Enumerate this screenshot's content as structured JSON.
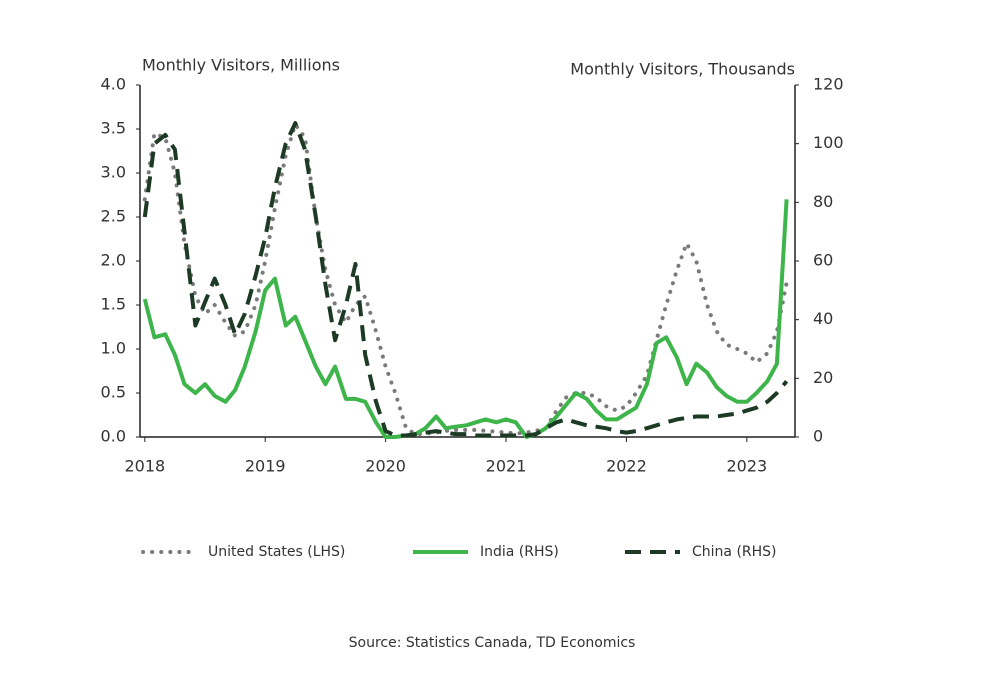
{
  "chart_data": {
    "type": "line",
    "y_label": "Monthly Visitors, Millions",
    "y2_label": "Monthly Visitors, Thousands",
    "source": "Source: Statistics Canada, TD Economics",
    "x": [
      2018.0,
      2018.08,
      2018.17,
      2018.25,
      2018.33,
      2018.42,
      2018.5,
      2018.58,
      2018.67,
      2018.75,
      2018.83,
      2018.92,
      2019.0,
      2019.08,
      2019.17,
      2019.25,
      2019.33,
      2019.42,
      2019.5,
      2019.58,
      2019.67,
      2019.75,
      2019.83,
      2019.92,
      2020.0,
      2020.08,
      2020.17,
      2020.25,
      2020.33,
      2020.42,
      2020.5,
      2020.58,
      2020.67,
      2020.75,
      2020.83,
      2020.92,
      2021.0,
      2021.08,
      2021.17,
      2021.25,
      2021.33,
      2021.42,
      2021.5,
      2021.58,
      2021.67,
      2021.75,
      2021.83,
      2021.92,
      2022.0,
      2022.08,
      2022.17,
      2022.25,
      2022.33,
      2022.42,
      2022.5,
      2022.58,
      2022.67,
      2022.75,
      2022.83,
      2022.92,
      2023.0,
      2023.08,
      2023.17,
      2023.25,
      2023.33
    ],
    "xlim": [
      2017.96,
      2023.4
    ],
    "xticks": [
      2018,
      2019,
      2020,
      2021,
      2022,
      2023
    ],
    "ylim": [
      0,
      4
    ],
    "yticks": [
      {
        "value": 0,
        "label": "0.0"
      },
      0.5,
      {
        "value": 1,
        "label": "1.0"
      },
      1.5,
      {
        "value": 2,
        "label": "2.0"
      },
      2.5,
      {
        "value": 3,
        "label": "3.0"
      },
      3.5,
      {
        "value": 4,
        "label": "4.0"
      }
    ],
    "y2lim": [
      0,
      120
    ],
    "y2ticks": [
      0,
      20,
      40,
      60,
      80,
      100,
      120
    ],
    "series": [
      {
        "name": "United States (LHS)",
        "color": "#7a7a7a",
        "line_style": "dotted",
        "values": [
          2.7,
          3.45,
          3.4,
          3.0,
          2.2,
          1.6,
          1.4,
          1.5,
          1.3,
          1.15,
          1.2,
          1.5,
          2.0,
          2.6,
          3.2,
          3.55,
          3.4,
          2.5,
          1.9,
          1.5,
          1.3,
          1.5,
          1.6,
          1.2,
          0.8,
          0.5,
          0.1,
          0.03,
          0.04,
          0.05,
          0.07,
          0.08,
          0.08,
          0.08,
          0.07,
          0.06,
          0.05,
          0.04,
          0.05,
          0.07,
          0.1,
          0.3,
          0.45,
          0.5,
          0.5,
          0.45,
          0.35,
          0.3,
          0.35,
          0.5,
          0.7,
          1.1,
          1.5,
          1.9,
          2.2,
          2.0,
          1.5,
          1.2,
          1.05,
          1.0,
          0.95,
          0.85,
          0.95,
          1.2,
          1.75
        ]
      },
      {
        "name": "India (RHS)",
        "color": "#3db54a",
        "line_style": "solid",
        "axis": "y2",
        "values": [
          47,
          34,
          35,
          28,
          18,
          15,
          18,
          14,
          12,
          16,
          24,
          36,
          50,
          54,
          38,
          41,
          33,
          24,
          18,
          24,
          13,
          13,
          12,
          5,
          0,
          0,
          0.5,
          1,
          3,
          7,
          3,
          3.5,
          4,
          5,
          6,
          5,
          6,
          5,
          0,
          1,
          3,
          7,
          11,
          15,
          13,
          9,
          6,
          6,
          8,
          10,
          18,
          32,
          34,
          27,
          18,
          25,
          22,
          17,
          14,
          12,
          12,
          15,
          19,
          25,
          81
        ]
      },
      {
        "name": "China (RHS)",
        "color": "#1d3a24",
        "line_style": "dashed",
        "axis": "y2",
        "values": [
          75,
          100,
          103,
          98,
          70,
          38,
          46,
          54,
          45,
          35,
          42,
          55,
          68,
          85,
          100,
          107,
          98,
          75,
          52,
          33,
          45,
          59,
          28,
          12,
          2,
          0.5,
          0.5,
          1,
          1.5,
          2,
          1.5,
          1,
          1,
          0.5,
          0.5,
          0.5,
          0.5,
          0.5,
          0.5,
          1,
          3,
          5,
          6,
          5,
          4,
          3.5,
          3,
          2,
          1.5,
          2,
          3,
          4,
          5,
          6,
          6.5,
          7,
          7,
          7,
          7.5,
          8,
          9,
          10,
          12,
          15,
          19
        ]
      }
    ]
  }
}
